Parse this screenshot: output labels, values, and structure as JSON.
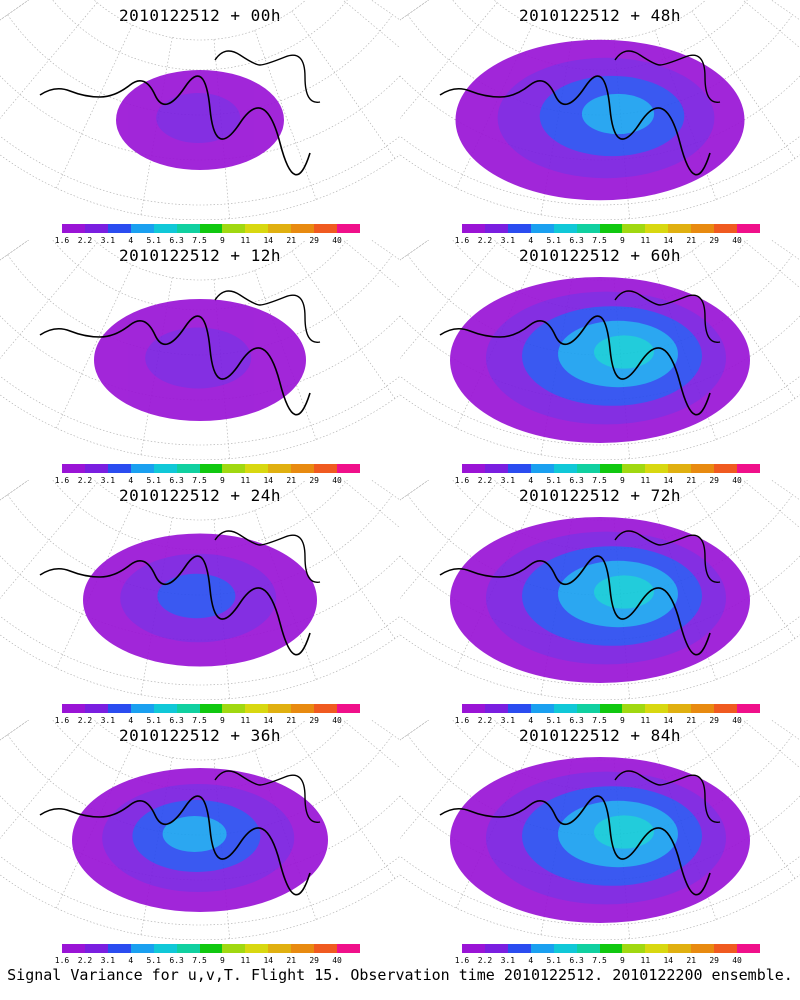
{
  "panels": [
    {
      "title": "2010122512 + 00h",
      "intensity": 0.1,
      "spread": 0.4
    },
    {
      "title": "2010122512 + 48h",
      "intensity": 0.45,
      "spread": 0.95
    },
    {
      "title": "2010122512 + 12h",
      "intensity": 0.25,
      "spread": 0.6
    },
    {
      "title": "2010122512 + 60h",
      "intensity": 0.5,
      "spread": 1.0
    },
    {
      "title": "2010122512 + 24h",
      "intensity": 0.3,
      "spread": 0.7
    },
    {
      "title": "2010122512 + 72h",
      "intensity": 0.55,
      "spread": 1.0
    },
    {
      "title": "2010122512 + 36h",
      "intensity": 0.4,
      "spread": 0.8
    },
    {
      "title": "2010122512 + 84h",
      "intensity": 0.55,
      "spread": 1.0
    }
  ],
  "colorbar": {
    "labels": [
      "1.6",
      "2.2",
      "3.1",
      "4",
      "5.1",
      "6.3",
      "7.5",
      "9",
      "11",
      "14",
      "21",
      "29",
      "40"
    ],
    "colors": [
      "#9a14d6",
      "#7a1ee0",
      "#2a4cf0",
      "#1aa0f0",
      "#10c8d8",
      "#10d0a0",
      "#10c810",
      "#a0d810",
      "#d8d810",
      "#e0b010",
      "#e88a10",
      "#f05a20",
      "#f0108a"
    ]
  },
  "footer": "Signal Variance for u,v,T. Flight 15. Observation time 2010122512. 2010122200 ensemble."
}
